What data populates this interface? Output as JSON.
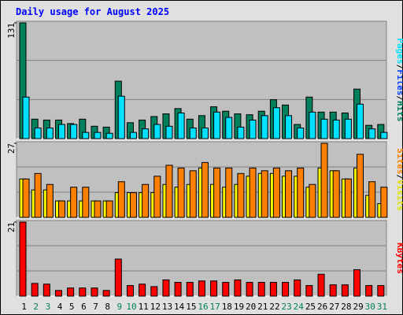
{
  "chart_data": {
    "type": "bar",
    "title": "Daily usage for August 2025",
    "categories": [
      "1",
      "2",
      "3",
      "4",
      "5",
      "6",
      "7",
      "8",
      "9",
      "10",
      "11",
      "12",
      "13",
      "14",
      "15",
      "16",
      "17",
      "18",
      "19",
      "20",
      "21",
      "22",
      "23",
      "24",
      "25",
      "26",
      "27",
      "28",
      "29",
      "30",
      "31"
    ],
    "category_colors": [
      "#000000",
      "#00805c",
      "#00805c",
      "#000000",
      "#000000",
      "#000000",
      "#000000",
      "#000000",
      "#00805c",
      "#00805c",
      "#000000",
      "#000000",
      "#000000",
      "#000000",
      "#000000",
      "#00805c",
      "#00805c",
      "#000000",
      "#000000",
      "#000000",
      "#000000",
      "#000000",
      "#00805c",
      "#00805c",
      "#000000",
      "#000000",
      "#000000",
      "#000000",
      "#000000",
      "#00805c",
      "#00805c"
    ],
    "legend_separator": "/",
    "panels": [
      {
        "ylim": [
          0,
          131
        ],
        "yticks": [
          131
        ],
        "series": [
          {
            "name": "Hits",
            "color": "#00805c",
            "values": [
              131,
              22,
              21,
              21,
              17,
              22,
              14,
              13,
              65,
              18,
              21,
              25,
              28,
              34,
              22,
              26,
              36,
              31,
              28,
              27,
              31,
              44,
              38,
              16,
              47,
              30,
              30,
              29,
              56,
              15,
              16
            ]
          },
          {
            "name": "Files",
            "color": "#0040ff",
            "values": [
              null,
              null,
              null,
              null,
              null,
              null,
              null,
              null,
              null,
              null,
              null,
              null,
              null,
              null,
              null,
              null,
              null,
              null,
              null,
              null,
              null,
              null,
              null,
              null,
              null,
              null,
              null,
              null,
              null,
              null,
              null
            ]
          },
          {
            "name": "Pages",
            "color": "#00e0ff",
            "values": [
              47,
              12,
              12,
              16,
              16,
              7,
              7,
              6,
              48,
              7,
              11,
              16,
              14,
              29,
              12,
              12,
              30,
              24,
              13,
              21,
              26,
              35,
              26,
              12,
              30,
              22,
              21,
              22,
              39,
              11,
              7
            ]
          }
        ]
      },
      {
        "ylim": [
          0,
          27
        ],
        "yticks": [
          27
        ],
        "series": [
          {
            "name": "Visits",
            "color": "#ffff00",
            "values": [
              14,
              10,
              10,
              6,
              6,
              6,
              6,
              6,
              9,
              9,
              9,
              9,
              12,
              11,
              12,
              18,
              12,
              11,
              12,
              15,
              16,
              16,
              15,
              15,
              11,
              18,
              17,
              14,
              18,
              8,
              5
            ]
          },
          {
            "name": "Sites",
            "color": "#ff8000",
            "values": [
              14,
              16,
              12,
              6,
              11,
              11,
              6,
              6,
              13,
              9,
              12,
              15,
              19,
              18,
              17,
              20,
              18,
              18,
              16,
              18,
              17,
              18,
              17,
              18,
              12,
              27,
              17,
              14,
              23,
              13,
              11
            ]
          }
        ]
      },
      {
        "ylim": [
          0,
          21
        ],
        "yticks": [
          21
        ],
        "series": [
          {
            "name": "KBytes",
            "color": "#ff0000",
            "values": [
              21,
              3.6,
              3.4,
              1.6,
              2.3,
              2.3,
              2.3,
              1.6,
              10.5,
              3.0,
              3.4,
              2.7,
              4.6,
              3.9,
              3.9,
              4.3,
              4.3,
              3.9,
              4.6,
              3.9,
              3.9,
              3.9,
              3.9,
              4.6,
              3.0,
              6.2,
              3.2,
              3.2,
              7.5,
              3.0,
              3.0
            ]
          }
        ]
      }
    ]
  }
}
